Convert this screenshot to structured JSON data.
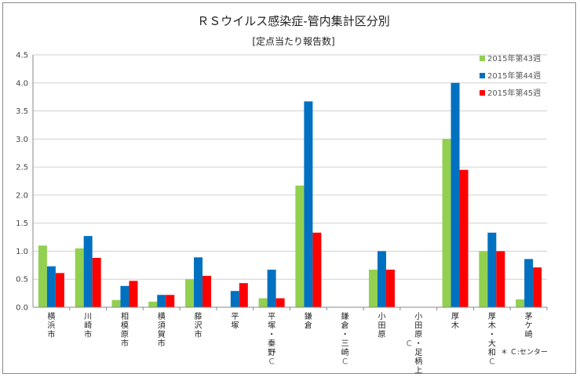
{
  "chart_data": {
    "type": "bar",
    "title": "ＲＳウイルス感染症-管内集計区分別",
    "subtitle": "[定点当たり報告数]",
    "ylim": [
      0,
      4.5
    ],
    "yticks": [
      "0.0",
      "0.5",
      "1.0",
      "1.5",
      "2.0",
      "2.5",
      "3.0",
      "3.5",
      "4.0",
      "4.5"
    ],
    "legend_position": "top-right",
    "grid": true,
    "categories": [
      {
        "label": "横浜市",
        "suffix": ""
      },
      {
        "label": "川崎市",
        "suffix": ""
      },
      {
        "label": "相模原市",
        "suffix": ""
      },
      {
        "label": "横須賀市",
        "suffix": ""
      },
      {
        "label": "藤沢市",
        "suffix": ""
      },
      {
        "label": "平塚",
        "suffix": ""
      },
      {
        "label": "平塚・秦野",
        "suffix": "Ｃ"
      },
      {
        "label": "鎌倉",
        "suffix": ""
      },
      {
        "label": "鎌倉・三崎",
        "suffix": "Ｃ"
      },
      {
        "label": "小田原",
        "suffix": ""
      },
      {
        "label": "小田原・足柄上",
        "suffix": "Ｃ",
        "suffix_side": "left"
      },
      {
        "label": "厚木",
        "suffix": ""
      },
      {
        "label": "厚木・大和",
        "suffix": "Ｃ"
      },
      {
        "label": "茅ケ崎",
        "suffix": ""
      }
    ],
    "series": [
      {
        "name": "2015年第43週",
        "color": "#92d050",
        "values": [
          1.1,
          1.05,
          0.13,
          0.1,
          0.5,
          0,
          0.16,
          2.17,
          0,
          0.67,
          0,
          3.0,
          1.0,
          0.14
        ]
      },
      {
        "name": "2015年第44週",
        "color": "#0070c0",
        "values": [
          0.73,
          1.27,
          0.38,
          0.22,
          0.89,
          0.29,
          0.67,
          3.67,
          0,
          1.0,
          0,
          4.0,
          1.33,
          0.86
        ]
      },
      {
        "name": "2015年第45週",
        "color": "#ff0000",
        "values": [
          0.61,
          0.88,
          0.47,
          0.22,
          0.56,
          0.43,
          0.16,
          1.33,
          0,
          0.67,
          0,
          2.45,
          1.0,
          0.71
        ]
      }
    ],
    "footnote": "＊ Ｃ:センター"
  }
}
